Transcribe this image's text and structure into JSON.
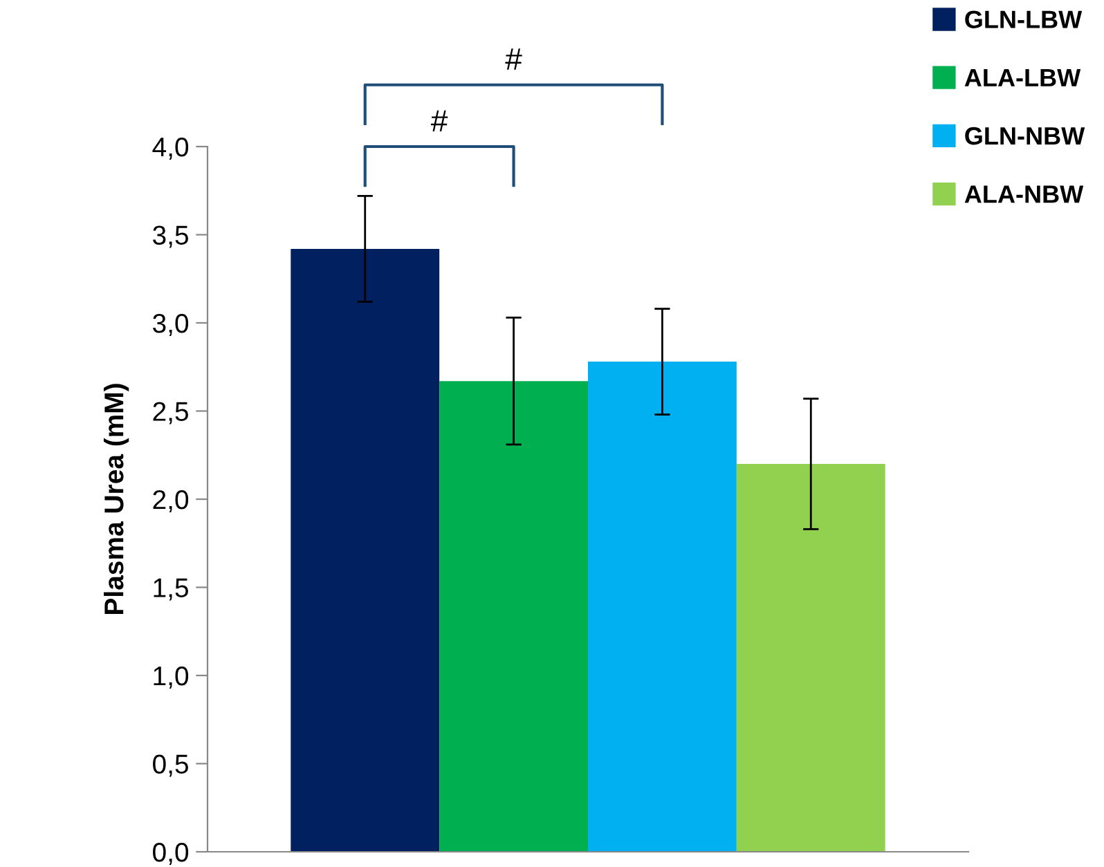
{
  "chart_data": {
    "type": "bar",
    "ylabel": "Plasma Urea (mM)",
    "categories": [
      null
    ],
    "series": [
      {
        "name": "GLN-LBW",
        "color": "#002060",
        "values": [
          3.42
        ],
        "errors": [
          0.3
        ]
      },
      {
        "name": "ALA-LBW",
        "color": "#00b050",
        "values": [
          2.67
        ],
        "errors": [
          0.36
        ]
      },
      {
        "name": "GLN-NBW",
        "color": "#00b0f0",
        "values": [
          2.78
        ],
        "errors": [
          0.3
        ]
      },
      {
        "name": "ALA-NBW",
        "color": "#92d050",
        "values": [
          2.2
        ],
        "errors": [
          0.37
        ]
      }
    ],
    "ylim": [
      0,
      4
    ],
    "yticks": [
      {
        "value": 0,
        "label": "0,0"
      },
      {
        "value": 0.5,
        "label": "0,5"
      },
      {
        "value": 1,
        "label": "1,0"
      },
      {
        "value": 1.5,
        "label": "1,5"
      },
      {
        "value": 2,
        "label": "2,0"
      },
      {
        "value": 2.5,
        "label": "2,5"
      },
      {
        "value": 3,
        "label": "3,0"
      },
      {
        "value": 3.5,
        "label": "3,5"
      },
      {
        "value": 4,
        "label": "4,0"
      }
    ],
    "annotations": [
      "#",
      "#"
    ],
    "legend": "top right",
    "grid": false
  }
}
